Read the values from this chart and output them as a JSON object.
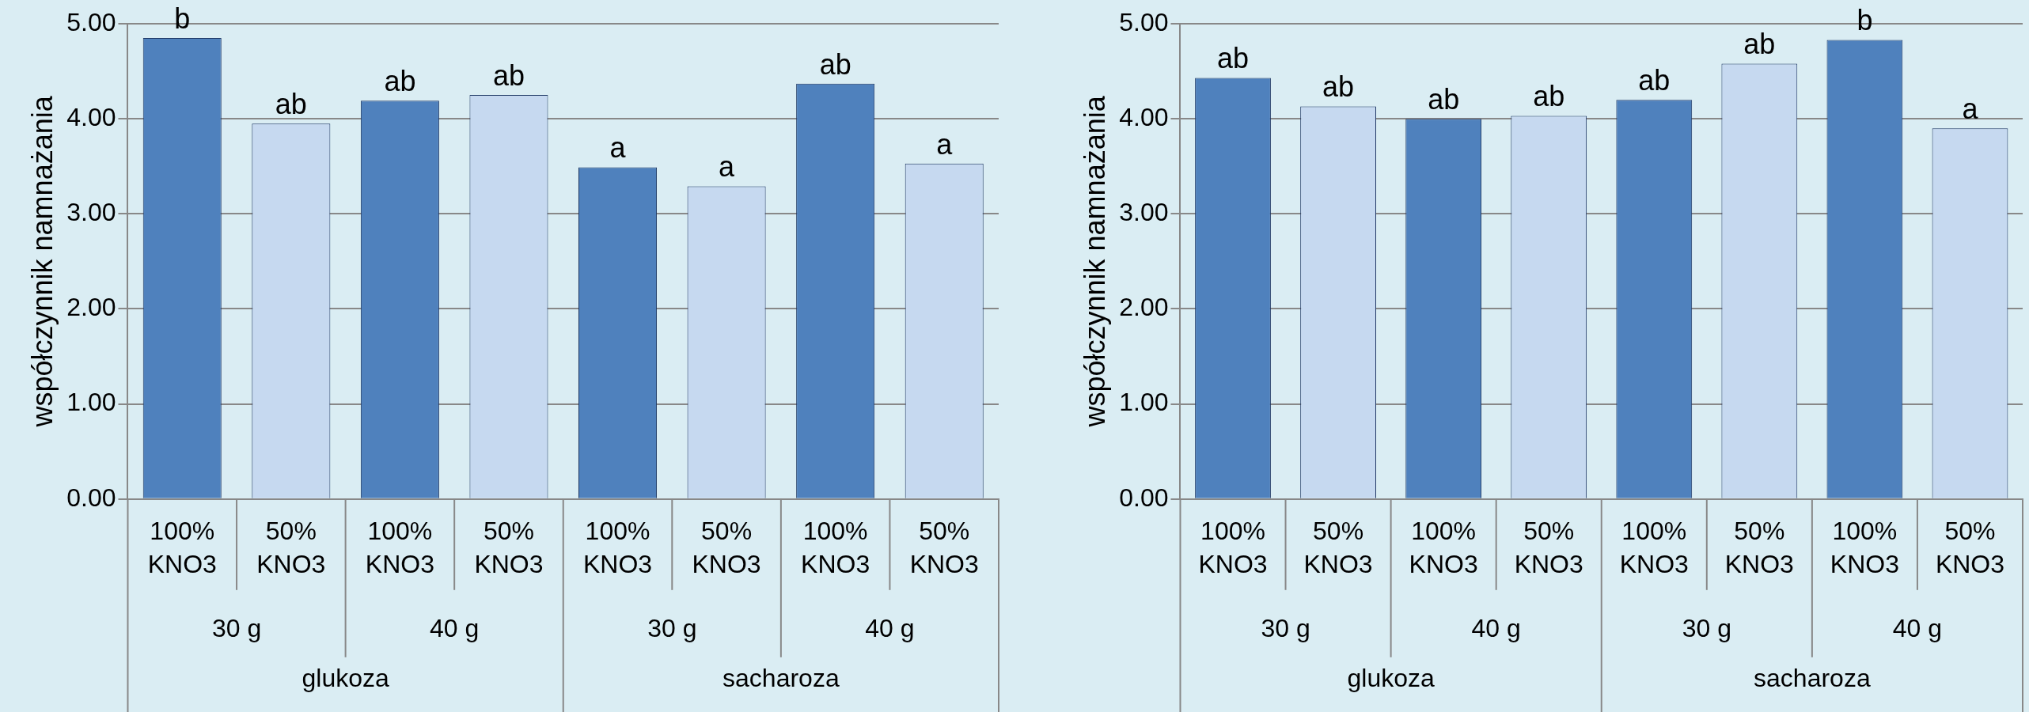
{
  "chart_data": [
    {
      "type": "bar",
      "ylabel": "współczynnik namnażania",
      "categories": [
        "100% KNO3",
        "50% KNO3",
        "100% KNO3",
        "50% KNO3",
        "100% KNO3",
        "50% KNO3",
        "100% KNO3",
        "50% KNO3"
      ],
      "values": [
        4.85,
        3.95,
        4.19,
        4.25,
        3.49,
        3.29,
        4.37,
        3.53
      ],
      "colors": [
        "#4f81bd",
        "#c6d9f0",
        "#4f81bd",
        "#c6d9f0",
        "#4f81bd",
        "#c6d9f0",
        "#4f81bd",
        "#c6d9f0"
      ],
      "value_labels": [
        "b",
        "ab",
        "ab",
        "ab",
        "a",
        "a",
        "ab",
        "a"
      ],
      "ylim": [
        0,
        5
      ],
      "yticks": [
        {
          "value": 0,
          "label": "0.00"
        },
        {
          "value": 1,
          "label": "1.00"
        },
        {
          "value": 2,
          "label": "2.00"
        },
        {
          "value": 3,
          "label": "3.00"
        },
        {
          "value": 4,
          "label": "4.00"
        },
        {
          "value": 5,
          "label": "5.00"
        }
      ],
      "grid": "y",
      "annotations": [
        "30 g",
        "40 g",
        "30 g",
        "40 g",
        "glukoza",
        "sacharoza"
      ]
    },
    {
      "type": "bar",
      "ylabel": "współczynnik namnażania",
      "categories": [
        "100% KNO3",
        "50% KNO3",
        "100% KNO3",
        "50% KNO3",
        "100% KNO3",
        "50% KNO3",
        "100% KNO3",
        "50% KNO3"
      ],
      "values": [
        4.43,
        4.13,
        4.0,
        4.03,
        4.2,
        4.58,
        4.83,
        3.9
      ],
      "colors": [
        "#4f81bd",
        "#c6d9f0",
        "#4f81bd",
        "#c6d9f0",
        "#4f81bd",
        "#c6d9f0",
        "#4f81bd",
        "#c6d9f0"
      ],
      "value_labels": [
        "ab",
        "ab",
        "ab",
        "ab",
        "ab",
        "ab",
        "b",
        "a"
      ],
      "ylim": [
        0,
        5
      ],
      "yticks": [
        {
          "value": 0,
          "label": "0.00"
        },
        {
          "value": 1,
          "label": "1.00"
        },
        {
          "value": 2,
          "label": "2.00"
        },
        {
          "value": 3,
          "label": "3.00"
        },
        {
          "value": 4,
          "label": "4.00"
        },
        {
          "value": 5,
          "label": "5.00"
        }
      ],
      "grid": "y",
      "annotations": [
        "30 g",
        "40 g",
        "30 g",
        "40 g",
        "glukoza",
        "sacharoza"
      ]
    }
  ]
}
